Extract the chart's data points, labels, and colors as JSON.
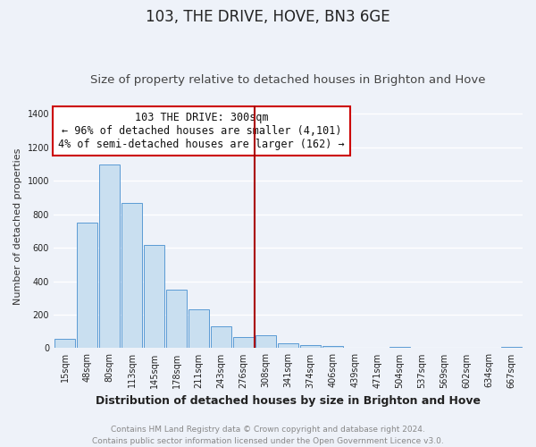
{
  "title": "103, THE DRIVE, HOVE, BN3 6GE",
  "subtitle": "Size of property relative to detached houses in Brighton and Hove",
  "xlabel": "Distribution of detached houses by size in Brighton and Hove",
  "ylabel": "Number of detached properties",
  "bar_labels": [
    "15sqm",
    "48sqm",
    "80sqm",
    "113sqm",
    "145sqm",
    "178sqm",
    "211sqm",
    "243sqm",
    "276sqm",
    "308sqm",
    "341sqm",
    "374sqm",
    "406sqm",
    "439sqm",
    "471sqm",
    "504sqm",
    "537sqm",
    "569sqm",
    "602sqm",
    "634sqm",
    "667sqm"
  ],
  "bar_values": [
    55,
    750,
    1100,
    870,
    615,
    350,
    230,
    130,
    65,
    75,
    30,
    20,
    15,
    0,
    0,
    10,
    0,
    0,
    0,
    0,
    10
  ],
  "bar_color": "#c9dff0",
  "bar_edge_color": "#5b9bd5",
  "annotation_line1": "103 THE DRIVE: 300sqm",
  "annotation_line2": "← 96% of detached houses are smaller (4,101)",
  "annotation_line3": "4% of semi-detached houses are larger (162) →",
  "vline_idx": 9,
  "vline_color": "#aa0000",
  "ylim": [
    0,
    1450
  ],
  "yticks": [
    0,
    200,
    400,
    600,
    800,
    1000,
    1200,
    1400
  ],
  "footer_line1": "Contains HM Land Registry data © Crown copyright and database right 2024.",
  "footer_line2": "Contains public sector information licensed under the Open Government Licence v3.0.",
  "bg_color": "#eef2f9",
  "grid_color": "#ffffff",
  "title_fontsize": 12,
  "subtitle_fontsize": 9.5,
  "xlabel_fontsize": 9,
  "ylabel_fontsize": 8,
  "tick_fontsize": 7,
  "footer_fontsize": 6.5,
  "annotation_fontsize": 8.5
}
